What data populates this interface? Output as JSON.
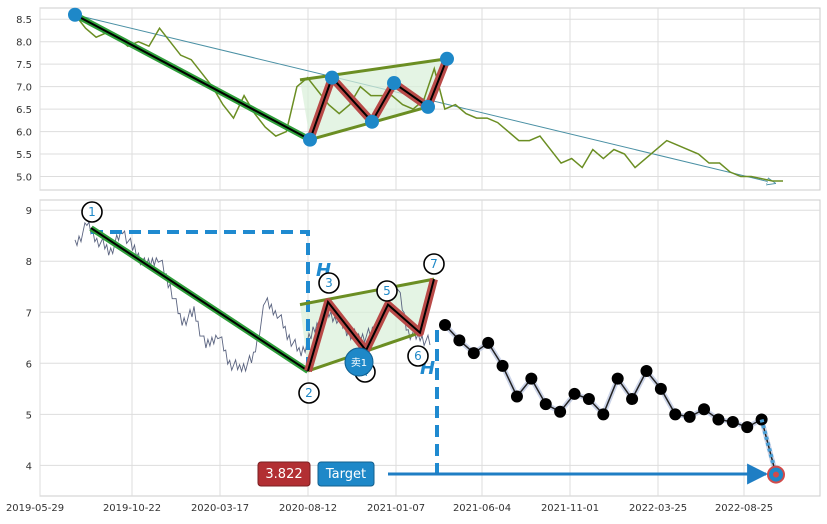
{
  "chart_data": [
    {
      "type": "line",
      "panel": "upper",
      "ylim": [
        4.7,
        8.75
      ],
      "yticks": [
        "5.0",
        "5.5",
        "6.0",
        "6.5",
        "7.0",
        "7.5",
        "8.0",
        "8.5"
      ],
      "grid": true,
      "series": [
        {
          "values": [
            8.6,
            8.3,
            8.1,
            8.2,
            8.1,
            7.9,
            8.0,
            7.9,
            8.3,
            8.0,
            7.7,
            7.6,
            7.3,
            7.0,
            6.6,
            6.3,
            6.8,
            6.4,
            6.1,
            5.9,
            6.0,
            7.0,
            7.2,
            6.9,
            6.6,
            6.4,
            6.6,
            7.0,
            6.8,
            6.8,
            6.8,
            6.6,
            6.5,
            6.7,
            7.4,
            6.5,
            6.6,
            6.4,
            6.3,
            6.3,
            6.2,
            6.0,
            5.8,
            5.8,
            5.9,
            5.6,
            5.3,
            5.4,
            5.2,
            5.6,
            5.4,
            5.6,
            5.5,
            5.2,
            5.4,
            5.6,
            5.8,
            5.7,
            5.6,
            5.5,
            5.3,
            5.3,
            5.1,
            5.0,
            5.0,
            4.95,
            4.9,
            4.9
          ]
        }
      ],
      "trendline": {
        "from": 8.6,
        "to": 4.85
      },
      "pattern_points": [
        8.6,
        5.82,
        7.2,
        6.22,
        7.08,
        6.55,
        7.62
      ]
    },
    {
      "type": "line",
      "panel": "lower",
      "ylim": [
        3.4,
        9.2
      ],
      "yticks": [
        "4",
        "5",
        "6",
        "7",
        "8",
        "9"
      ],
      "xticks": [
        "2019-05-29",
        "2019-10-22",
        "2020-03-17",
        "2020-08-12",
        "2021-01-07",
        "2021-06-04",
        "2021-11-01",
        "2022-03-25",
        "2022-08-25"
      ],
      "grid": true,
      "series": [
        {
          "values": [
            8.3,
            8.7,
            8.4,
            8.2,
            8.6,
            8.2,
            7.9,
            8.1,
            7.5,
            6.8,
            7.0,
            6.3,
            6.6,
            6.0,
            5.9,
            6.1,
            7.2,
            7.0,
            6.5,
            6.2,
            6.6,
            7.0,
            6.9,
            6.6,
            6.5,
            6.6,
            6.9,
            7.6,
            6.6,
            6.5,
            6.4
          ]
        }
      ],
      "wave_labels": [
        "1",
        "2",
        "3",
        "4",
        "5",
        "6",
        "7"
      ],
      "wave_points": [
        8.65,
        5.85,
        7.2,
        6.25,
        7.15,
        6.6,
        7.65
      ],
      "neckline": [
        7.15,
        7.65
      ],
      "lower_line": [
        5.85,
        6.6
      ],
      "h_marker": "H",
      "sell_label": "卖1",
      "projection_points": [
        6.75,
        6.45,
        6.2,
        6.4,
        5.95,
        5.35,
        5.7,
        5.2,
        5.05,
        5.4,
        5.3,
        5.0,
        5.7,
        5.3,
        5.85,
        5.5,
        5.0,
        4.95,
        5.1,
        4.9,
        4.85,
        4.75,
        4.9,
        3.82
      ],
      "target_value": "3.822",
      "target_label": "Target",
      "colors": {
        "price": "#5b6480",
        "green": "#6b8e23",
        "red": "#b94a48",
        "blue": "#1e88c8",
        "dashed": "#1f8ad0"
      }
    }
  ]
}
